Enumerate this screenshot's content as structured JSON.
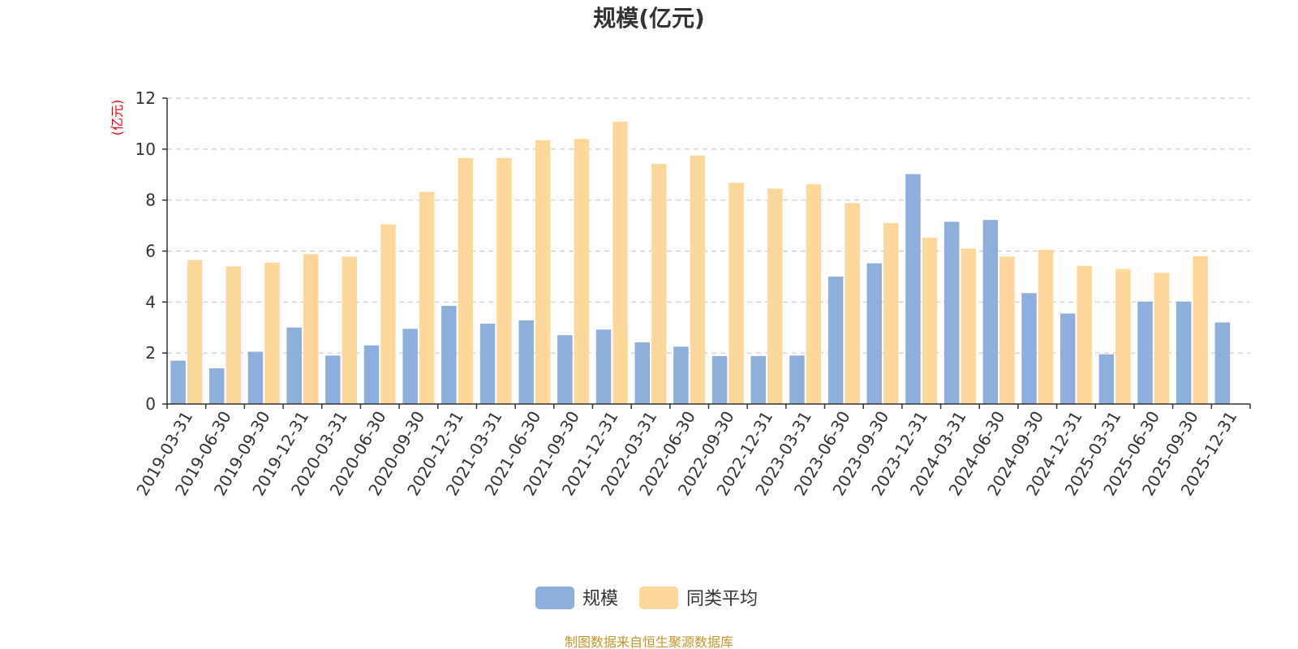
{
  "chart_data": {
    "type": "bar",
    "title": "规模(亿元)",
    "ylabel": "(亿元)",
    "ylim": [
      0,
      12
    ],
    "yticks": [
      0,
      2,
      4,
      6,
      8,
      10,
      12
    ],
    "grid": true,
    "legend_position": "bottom-center",
    "categories": [
      "2019-03-31",
      "2019-06-30",
      "2019-09-30",
      "2019-12-31",
      "2020-03-31",
      "2020-06-30",
      "2020-09-30",
      "2020-12-31",
      "2021-03-31",
      "2021-06-30",
      "2021-09-30",
      "2021-12-31",
      "2022-03-31",
      "2022-06-30",
      "2022-09-30",
      "2022-12-31",
      "2023-03-31",
      "2023-06-30",
      "2023-09-30",
      "2023-12-31",
      "2024-03-31",
      "2024-06-30",
      "2024-09-30",
      "2024-12-31",
      "2025-03-31",
      "2025-06-30",
      "2025-09-30",
      "2025-12-31"
    ],
    "series": [
      {
        "name": "规模",
        "color": "#8eaedc",
        "values": [
          1.7,
          1.4,
          2.05,
          3.0,
          1.9,
          2.3,
          2.95,
          3.85,
          3.15,
          3.28,
          2.7,
          2.92,
          2.42,
          2.25,
          1.88,
          1.88,
          1.9,
          5.0,
          5.52,
          9.02,
          7.15,
          7.22,
          4.35,
          3.55,
          1.95,
          4.02,
          4.02,
          3.2
        ]
      },
      {
        "name": "同类平均",
        "color": "#fdd89a",
        "values": [
          5.65,
          5.4,
          5.55,
          5.88,
          5.78,
          7.05,
          8.32,
          9.65,
          9.65,
          10.35,
          10.4,
          11.08,
          9.42,
          9.75,
          8.68,
          8.45,
          8.62,
          7.88,
          7.1,
          6.52,
          6.1,
          5.78,
          6.05,
          5.42,
          5.3,
          5.15,
          5.8,
          null
        ]
      }
    ],
    "source_note": "制图数据来自恒生聚源数据库"
  }
}
